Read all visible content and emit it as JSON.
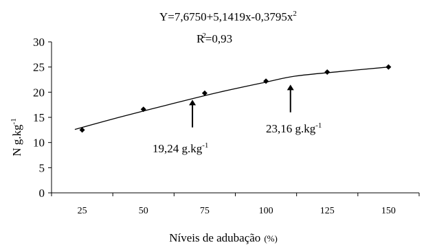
{
  "chart_data": {
    "type": "scatter",
    "equation": {
      "prefix": "Y=7,6750+5,1419x-0,3795x",
      "exponent": "2"
    },
    "r_squared": {
      "prefix": "R",
      "exponent": "2",
      "suffix": "=0,93"
    },
    "ylabel": {
      "main": "N g.kg",
      "exponent": "-1"
    },
    "xlabel": {
      "main": "Níveis de adubação",
      "unit": "(%)"
    },
    "x_ticks": [
      "25",
      "50",
      "75",
      "100",
      "125",
      "150"
    ],
    "y_ticks": [
      "0",
      "5",
      "10",
      "15",
      "20",
      "25",
      "30"
    ],
    "ylim": [
      0,
      30
    ],
    "grid": false,
    "points": [
      {
        "x": 25,
        "y": 12.5
      },
      {
        "x": 50,
        "y": 16.6
      },
      {
        "x": 75,
        "y": 19.8
      },
      {
        "x": 100,
        "y": 22.2
      },
      {
        "x": 125,
        "y": 24.0
      },
      {
        "x": 150,
        "y": 25.0
      }
    ],
    "fit_curve": [
      {
        "x": 22,
        "y": 12.6
      },
      {
        "x": 40,
        "y": 15.0
      },
      {
        "x": 60,
        "y": 17.5
      },
      {
        "x": 80,
        "y": 19.9
      },
      {
        "x": 100,
        "y": 22.0
      },
      {
        "x": 112,
        "y": 23.2
      },
      {
        "x": 130,
        "y": 24.1
      },
      {
        "x": 150,
        "y": 25.0
      }
    ],
    "annotations": [
      {
        "label": "19,24 g.kg",
        "exponent": "-1",
        "arrow_x": 70,
        "arrow_y_from": 13,
        "arrow_y_to": 18.5
      },
      {
        "label": "23,16 g.kg",
        "exponent": "-1",
        "arrow_x": 110,
        "arrow_y_from": 16,
        "arrow_y_to": 21.5
      }
    ]
  }
}
